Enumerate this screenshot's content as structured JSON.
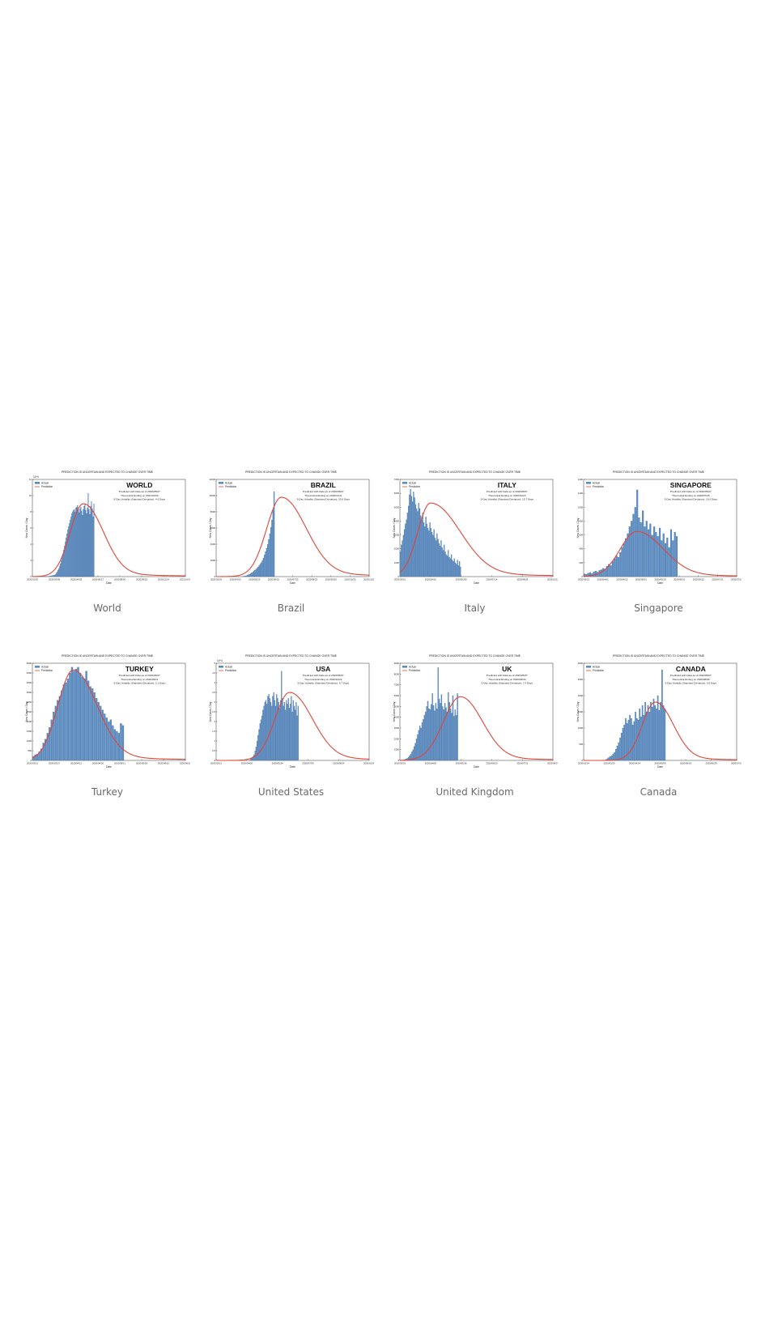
{
  "figures": [
    {
      "country_label": "World",
      "chart_data": {
        "type": "bar",
        "banner": "PREDICTION IS UNCERTAIN AND EXPECTED TO CHANGE OVER TIME",
        "title": "WORLD",
        "annotations": [
          "Predicted with Data as of 2020/05/07",
          "Theoretical Ending on 2021/01/03",
          "5-Day Volatility (Standard Deviation): 4.6 Days"
        ],
        "legend": [
          "Actual",
          "Prediction"
        ],
        "legend_position": "top-left",
        "ylabel": "New Cases / Day",
        "xlabel": "Date",
        "exponent": "10^4",
        "ylim": [
          0,
          12
        ],
        "yticks": [
          "0",
          "2",
          "4",
          "6",
          "8",
          "10",
          "12"
        ],
        "xlim": [
          0,
          300
        ],
        "xticks": [
          "2020/01/20",
          "2020/03/09",
          "2020/04/28",
          "2020/06/17",
          "2020/08/06",
          "2020/09/25",
          "2020/11/14",
          "2021/01/03"
        ],
        "actual_values": [
          0.01,
          0.01,
          0.01,
          0.01,
          0.01,
          0.01,
          0.01,
          0.01,
          0.01,
          0.01,
          0.01,
          0.01,
          0.01,
          0.01,
          0.01,
          0.02,
          0.02,
          0.02,
          0.03,
          0.04,
          0.05,
          0.06,
          0.08,
          0.1,
          0.12,
          0.15,
          0.18,
          0.2,
          0.3,
          0.45,
          0.6,
          0.8,
          1.0,
          1.3,
          1.6,
          2.0,
          2.4,
          2.8,
          3.3,
          3.8,
          4.3,
          4.8,
          5.3,
          5.8,
          6.2,
          6.6,
          7.0,
          7.4,
          7.8,
          8.0,
          8.2,
          8.3,
          8.0,
          8.5,
          8.6,
          8.8,
          8.3,
          7.9,
          8.4,
          8.6,
          8.1,
          7.6,
          8.3,
          8.7,
          8.9,
          8.2,
          7.8,
          8.5,
          10.3,
          8.3,
          7.7,
          8.7,
          9.3,
          8.4,
          7.4,
          9.0
        ],
        "actual_start": 0,
        "prediction_curve": {
          "peak_x": 100,
          "peak_y": 9.0,
          "sigma_left": 26,
          "sigma_right": 38
        }
      }
    },
    {
      "country_label": "Brazil",
      "chart_data": {
        "type": "bar",
        "banner": "PREDICTION IS UNCERTAIN AND EXPECTED TO CHANGE OVER TIME",
        "title": "BRAZIL",
        "annotations": [
          "Predicted with Data as of 2020/05/07",
          "Theoretical Ending on 2020/11/11",
          "5-Day Volatility (Standard Deviation): 20.6 Days"
        ],
        "legend": [
          "Actual",
          "Prediction"
        ],
        "legend_position": "top-left",
        "ylabel": "New Cases / Day",
        "xlabel": "Date",
        "exponent": "",
        "ylim": [
          0,
          12000
        ],
        "yticks": [
          "0",
          "2000",
          "4000",
          "6000",
          "8000",
          "10000",
          "12000"
        ],
        "xlim": [
          0,
          230
        ],
        "xticks": [
          "2020/03/25",
          "2020/04/25",
          "2020/05/25",
          "2020/06/25",
          "2020/07/25",
          "2020/08/25",
          "2020/09/25",
          "2020/10/25",
          "2020/11/25"
        ],
        "actual_values": [
          30,
          60,
          90,
          120,
          170,
          230,
          300,
          380,
          460,
          560,
          670,
          800,
          920,
          1050,
          1200,
          1380,
          1550,
          1750,
          2000,
          2300,
          2700,
          3100,
          3500,
          4000,
          4600,
          5300,
          6100,
          7000,
          8200,
          10500
        ],
        "actual_start": 40,
        "prediction_curve": {
          "peak_x": 98,
          "peak_y": 9800,
          "sigma_left": 22,
          "sigma_right": 36
        }
      }
    },
    {
      "country_label": "Italy",
      "chart_data": {
        "type": "bar",
        "banner": "PREDICTION IS UNCERTAIN AND EXPECTED TO CHANGE OVER TIME",
        "title": "ITALY",
        "annotations": [
          "Predicted with Data as of 2020/05/07",
          "Theoretical Ending on 2020/10/23",
          "5-Day Volatility (Standard Deviation): 15.7 Days"
        ],
        "legend": [
          "Actual",
          "Prediction"
        ],
        "legend_position": "top-left",
        "ylabel": "New Cases / Day",
        "xlabel": "Date",
        "exponent": "",
        "ylim": [
          0,
          7000
        ],
        "yticks": [
          "0",
          "1000",
          "2000",
          "3000",
          "4000",
          "5000",
          "6000",
          "7000"
        ],
        "xlim": [
          0,
          240
        ],
        "xticks": [
          "2020/03/01",
          "2020/04/15",
          "2020/05/30",
          "2020/07/14",
          "2020/08/28",
          "2020/10/12"
        ],
        "actual_values": [
          1800,
          2300,
          2600,
          3000,
          3400,
          3800,
          4100,
          4600,
          5100,
          5900,
          6300,
          5800,
          5400,
          6100,
          5700,
          5200,
          4900,
          4700,
          5300,
          4900,
          4400,
          4100,
          4600,
          3900,
          3600,
          4300,
          3800,
          3500,
          3300,
          3900,
          3500,
          3200,
          3000,
          3400,
          2800,
          2600,
          3100,
          2700,
          2400,
          2200,
          2600,
          2100,
          1900,
          2300,
          1800,
          1600,
          1500,
          1900,
          1400,
          1300,
          1600,
          1200,
          1100,
          1300,
          1000,
          900,
          1200,
          800,
          1100,
          700
        ],
        "actual_start": 0,
        "prediction_curve": {
          "peak_x": 48,
          "peak_y": 5300,
          "sigma_left": 20,
          "sigma_right": 45
        }
      }
    },
    {
      "country_label": "Singapore",
      "chart_data": {
        "type": "bar",
        "banner": "PREDICTION IS UNCERTAIN AND EXPECTED TO CHANGE OVER TIME",
        "title": "SINGAPORE",
        "annotations": [
          "Predicted with Data as of 2020/05/07",
          "Theoretical Ending on 2020/07/25",
          "5-Day Volatility (Standard Deviation): 16.0 Days"
        ],
        "legend": [
          "Actual",
          "Prediction"
        ],
        "legend_position": "top-left",
        "ylabel": "New Cases / Day",
        "xlabel": "Date",
        "exponent": "",
        "ylim": [
          0,
          1400
        ],
        "yticks": [
          "0",
          "200",
          "400",
          "600",
          "800",
          "1000",
          "1200",
          "1400"
        ],
        "xlim": [
          0,
          130
        ],
        "xticks": [
          "2020/03/15",
          "2020/04/01",
          "2020/04/15",
          "2020/05/01",
          "2020/05/15",
          "2020/06/01",
          "2020/06/15",
          "2020/07/01",
          "2020/07/15"
        ],
        "actual_values": [
          40,
          35,
          50,
          60,
          45,
          70,
          80,
          65,
          90,
          100,
          120,
          110,
          150,
          180,
          160,
          220,
          260,
          300,
          280,
          350,
          420,
          480,
          550,
          620,
          720,
          800,
          900,
          1000,
          1250,
          850,
          780,
          950,
          720,
          800,
          680,
          760,
          600,
          720,
          640,
          580,
          700,
          520,
          620,
          480,
          560,
          420,
          680,
          520,
          640,
          580
        ],
        "actual_start": 0,
        "prediction_curve": {
          "peak_x": 45,
          "peak_y": 650,
          "sigma_left": 14,
          "sigma_right": 22
        }
      }
    },
    {
      "country_label": "Turkey",
      "chart_data": {
        "type": "bar",
        "banner": "PREDICTION IS UNCERTAIN AND EXPECTED TO CHANGE OVER TIME",
        "title": "TURKEY",
        "annotations": [
          "Predicted with Data as of 2020/05/07",
          "Theoretical Ending on 2020/06/11",
          "5-Day Volatility (Standard Deviation): 3.1 Days"
        ],
        "legend": [
          "Actual",
          "Prediction"
        ],
        "legend_position": "top-left",
        "ylabel": "New Cases / Day",
        "xlabel": "Date",
        "exponent": "",
        "ylim": [
          0,
          5000
        ],
        "yticks": [
          "0",
          "500",
          "1000",
          "1500",
          "2000",
          "2500",
          "3000",
          "3500",
          "4000",
          "4500",
          "5000"
        ],
        "xlim": [
          0,
          120
        ],
        "xticks": [
          "2020/03/12",
          "2020/03/27",
          "2020/04/11",
          "2020/04/26",
          "2020/05/11",
          "2020/05/26",
          "2020/06/10",
          "2020/06/25"
        ],
        "actual_values": [
          200,
          300,
          320,
          450,
          600,
          900,
          1100,
          1400,
          1700,
          2100,
          2500,
          2800,
          3100,
          3300,
          3600,
          3900,
          4000,
          4200,
          4500,
          4800,
          4600,
          4700,
          4800,
          4500,
          4300,
          4200,
          4600,
          4100,
          3800,
          3700,
          3500,
          3200,
          3000,
          2800,
          2600,
          2400,
          2200,
          2000,
          2100,
          1800,
          1600,
          1500,
          1400,
          1900,
          1800
        ],
        "actual_start": 0,
        "prediction_curve": {
          "peak_x": 32,
          "peak_y": 4650,
          "sigma_left": 12,
          "sigma_right": 18
        }
      }
    },
    {
      "country_label": "United States",
      "chart_data": {
        "type": "bar",
        "banner": "PREDICTION IS UNCERTAIN AND EXPECTED TO CHANGE OVER TIME",
        "title": "USA",
        "annotations": [
          "Predicted with Data as of 2020/05/07",
          "Theoretical Ending on 2020/10/22",
          "5-Day Volatility (Standard Deviation): 8.7 Days"
        ],
        "legend": [
          "Actual",
          "Prediction"
        ],
        "legend_position": "top-left",
        "ylabel": "New Cases / Day",
        "xlabel": "Date",
        "exponent": "10^4",
        "ylim": [
          0,
          5
        ],
        "yticks": [
          "0",
          "0.5",
          "1",
          "1.5",
          "2",
          "2.5",
          "3",
          "3.5",
          "4",
          "4.5",
          "5"
        ],
        "xlim": [
          0,
          250
        ],
        "xticks": [
          "2020/02/21",
          "2020/04/08",
          "2020/05/24",
          "2020/07/09",
          "2020/08/24",
          "2020/10/09"
        ],
        "actual_values": [
          0.05,
          0.1,
          0.15,
          0.2,
          0.3,
          0.5,
          0.7,
          1.0,
          1.3,
          1.6,
          1.9,
          2.1,
          2.3,
          2.6,
          2.8,
          3.0,
          3.1,
          2.9,
          3.3,
          3.4,
          3.2,
          3.0,
          2.8,
          3.3,
          3.5,
          3.1,
          2.8,
          3.4,
          3.2,
          3.0,
          2.7,
          3.1,
          4.6,
          3.2,
          2.8,
          3.0,
          2.6,
          3.1,
          2.9,
          3.2,
          2.7,
          2.9,
          3.3,
          2.5,
          3.1,
          2.8,
          2.6,
          3.0,
          2.3,
          2.8
        ],
        "actual_start": 55,
        "prediction_curve": {
          "peak_x": 120,
          "peak_y": 3.5,
          "sigma_left": 24,
          "sigma_right": 36
        }
      }
    },
    {
      "country_label": "United Kingdom",
      "chart_data": {
        "type": "bar",
        "banner": "PREDICTION IS UNCERTAIN AND EXPECTED TO CHANGE OVER TIME",
        "title": "UK",
        "annotations": [
          "Predicted with Data as of 2020/05/07",
          "Theoretical Ending on 2020/09/30",
          "5-Day Volatility (Standard Deviation): 7.4 Days"
        ],
        "legend": [
          "Actual",
          "Prediction"
        ],
        "legend_position": "top-left",
        "ylabel": "New Cases / Day",
        "xlabel": "Date",
        "exponent": "",
        "ylim": [
          0,
          9000
        ],
        "yticks": [
          "0",
          "1000",
          "2000",
          "3000",
          "4000",
          "5000",
          "6000",
          "7000",
          "8000",
          "9000"
        ],
        "xlim": [
          0,
          215
        ],
        "xticks": [
          "2020/03/01",
          "2020/04/08",
          "2020/05/16",
          "2020/06/23",
          "2020/07/31",
          "2020/09/07"
        ],
        "actual_values": [
          50,
          100,
          150,
          200,
          300,
          450,
          600,
          800,
          1000,
          1300,
          1600,
          2000,
          2400,
          2800,
          3200,
          3000,
          3500,
          3800,
          4200,
          4500,
          5000,
          5500,
          4800,
          4700,
          5200,
          6200,
          5100,
          4600,
          5300,
          4800,
          8600,
          5700,
          5300,
          6100,
          5000,
          4700,
          5300,
          4900,
          4500,
          6300,
          5400,
          4800,
          4400,
          6000,
          4100,
          4700,
          4200,
          6200
        ],
        "actual_start": 5,
        "prediction_curve": {
          "peak_x": 85,
          "peak_y": 5900,
          "sigma_left": 24,
          "sigma_right": 30
        }
      }
    },
    {
      "country_label": "Canada",
      "chart_data": {
        "type": "bar",
        "banner": "PREDICTION IS UNCERTAIN AND EXPECTED TO CHANGE OVER TIME",
        "title": "CANADA",
        "annotations": [
          "Predicted with Data as of 2020/05/07",
          "Theoretical Ending on 2020/08/08",
          "5-Day Volatility (Standard Deviation): 5.5 Days"
        ],
        "legend": [
          "Actual",
          "Prediction"
        ],
        "legend_position": "top-left",
        "ylabel": "New Cases / Day",
        "xlabel": "Date",
        "exponent": "",
        "ylim": [
          0,
          3000
        ],
        "yticks": [
          "0",
          "500",
          "1000",
          "1500",
          "2000",
          "2500",
          "3000"
        ],
        "xlim": [
          0,
          175
        ],
        "xticks": [
          "2020/02/24",
          "2020/03/20",
          "2020/04/14",
          "2020/05/09",
          "2020/06/03",
          "2020/06/28",
          "2020/07/23"
        ],
        "actual_values": [
          30,
          60,
          90,
          120,
          150,
          200,
          250,
          350,
          450,
          550,
          700,
          850,
          1000,
          1100,
          1300,
          1150,
          1250,
          1400,
          1300,
          1100,
          1200,
          1500,
          1300,
          1250,
          1600,
          1350,
          1700,
          1400,
          1800,
          1500,
          1700,
          1500,
          1800,
          1650,
          1900,
          1700,
          1600,
          2000,
          1550,
          1800,
          2800,
          1700,
          1600
        ],
        "actual_start": 25,
        "prediction_curve": {
          "peak_x": 82,
          "peak_y": 1800,
          "sigma_left": 15,
          "sigma_right": 20
        }
      }
    }
  ]
}
